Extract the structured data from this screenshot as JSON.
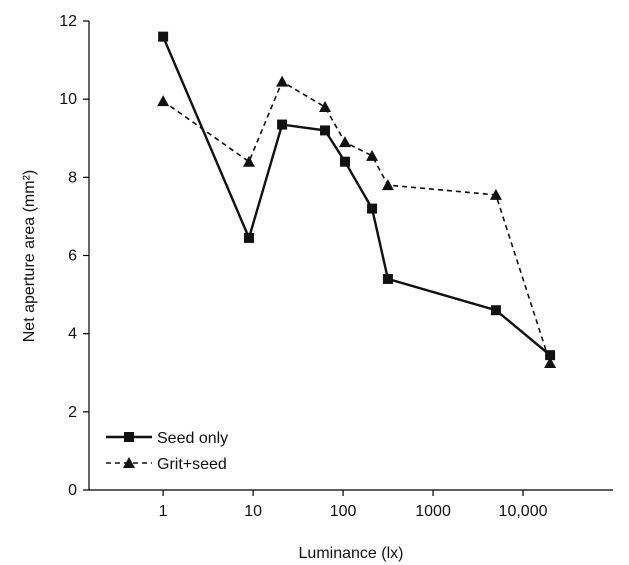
{
  "chart_data": {
    "type": "line",
    "xlabel": "Luminance (lx)",
    "ylabel": "Net aperture area (mm²)",
    "x_scale": "log",
    "xlim": [
      0.15,
      100000
    ],
    "ylim": [
      0,
      12
    ],
    "x_ticks": [
      {
        "value": 1,
        "label": "1"
      },
      {
        "value": 10,
        "label": "10"
      },
      {
        "value": 100,
        "label": "100"
      },
      {
        "value": 1000,
        "label": "1000"
      },
      {
        "value": 10000,
        "label": "10,000"
      }
    ],
    "y_ticks": [
      0,
      2,
      4,
      6,
      8,
      10,
      12
    ],
    "grid": false,
    "legend_position": "bottom-left",
    "series": [
      {
        "name": "Seed only",
        "marker": "square",
        "line_style": "solid",
        "color": "#111111",
        "points": [
          {
            "x": 1,
            "y": 11.6
          },
          {
            "x": 9,
            "y": 6.45
          },
          {
            "x": 21,
            "y": 9.35
          },
          {
            "x": 63,
            "y": 9.2
          },
          {
            "x": 105,
            "y": 8.4
          },
          {
            "x": 210,
            "y": 7.2
          },
          {
            "x": 315,
            "y": 5.4
          },
          {
            "x": 5000,
            "y": 4.6
          },
          {
            "x": 20000,
            "y": 3.45
          }
        ]
      },
      {
        "name": "Grit+seed",
        "marker": "triangle",
        "line_style": "dashed",
        "color": "#111111",
        "points": [
          {
            "x": 1,
            "y": 9.95
          },
          {
            "x": 9,
            "y": 8.4
          },
          {
            "x": 21,
            "y": 10.45
          },
          {
            "x": 63,
            "y": 9.8
          },
          {
            "x": 105,
            "y": 8.9
          },
          {
            "x": 210,
            "y": 8.55
          },
          {
            "x": 315,
            "y": 7.8
          },
          {
            "x": 5000,
            "y": 7.55
          },
          {
            "x": 20000,
            "y": 3.25
          }
        ]
      }
    ]
  }
}
